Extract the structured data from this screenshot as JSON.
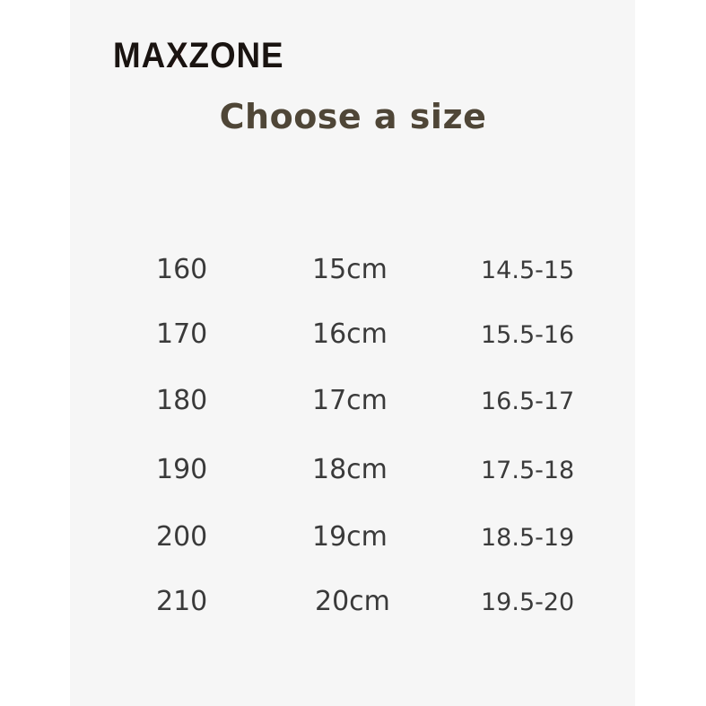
{
  "brand": {
    "logo_text": "MAXZONE",
    "accent_color": "#e0141a"
  },
  "title": "Choose a size",
  "rows": [
    {
      "size": "160",
      "length": "15cm",
      "range": "14.5-15"
    },
    {
      "size": "170",
      "length": "16cm",
      "range": "15.5-16"
    },
    {
      "size": "180",
      "length": "17cm",
      "range": "16.5-17"
    },
    {
      "size": "190",
      "length": "18cm",
      "range": "17.5-18"
    },
    {
      "size": "200",
      "length": "19cm",
      "range": "18.5-19"
    },
    {
      "size": "210",
      "length": "20cm",
      "range": "19.5-20"
    }
  ]
}
